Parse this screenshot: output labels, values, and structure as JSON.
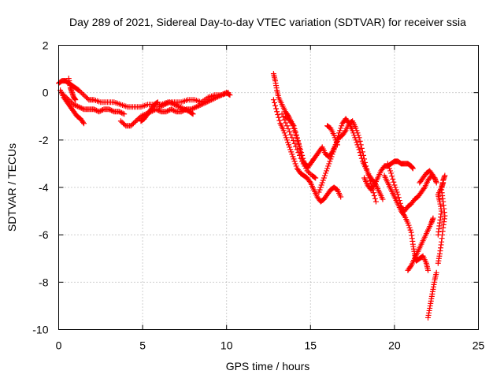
{
  "chart_data": {
    "type": "scatter",
    "title": "Day 289 of 2021, Sidereal Day-to-day VTEC variation (SDTVAR) for receiver ssia",
    "xlabel": "GPS time / hours",
    "ylabel": "SDTVAR / TECUs",
    "xlim": [
      0,
      25
    ],
    "ylim": [
      -10,
      2
    ],
    "xticks": [
      0,
      5,
      10,
      15,
      20,
      25
    ],
    "yticks": [
      -10,
      -8,
      -6,
      -4,
      -2,
      0,
      2
    ],
    "xtick_labels": [
      "0",
      "5",
      "10",
      "15",
      "20",
      "25"
    ],
    "ytick_labels": [
      "-10",
      "-8",
      "-6",
      "-4",
      "-2",
      "0",
      "2"
    ],
    "grid": true,
    "legend": "none",
    "marker": "plus",
    "series": [
      {
        "name": "SDTVAR",
        "color": "#ff0000",
        "tracks": [
          [
            [
              0.0,
              0.4
            ],
            [
              0.2,
              0.5
            ],
            [
              0.4,
              0.5
            ],
            [
              0.6,
              0.4
            ],
            [
              0.8,
              0.3
            ],
            [
              1.0,
              0.2
            ],
            [
              1.2,
              0.1
            ],
            [
              1.5,
              -0.1
            ],
            [
              1.8,
              -0.3
            ],
            [
              2.1,
              -0.3
            ],
            [
              2.5,
              -0.4
            ],
            [
              2.9,
              -0.4
            ],
            [
              3.3,
              -0.4
            ],
            [
              3.7,
              -0.5
            ],
            [
              4.1,
              -0.6
            ],
            [
              4.5,
              -0.6
            ],
            [
              4.9,
              -0.6
            ],
            [
              5.3,
              -0.5
            ],
            [
              5.7,
              -0.5
            ],
            [
              6.1,
              -0.5
            ],
            [
              6.5,
              -0.4
            ],
            [
              6.9,
              -0.4
            ],
            [
              7.3,
              -0.4
            ],
            [
              7.7,
              -0.3
            ],
            [
              8.1,
              -0.3
            ],
            [
              8.5,
              -0.4
            ],
            [
              8.9,
              -0.2
            ],
            [
              9.3,
              -0.1
            ],
            [
              9.7,
              -0.1
            ],
            [
              10.1,
              0.0
            ]
          ],
          [
            [
              0.1,
              0.1
            ],
            [
              0.3,
              -0.2
            ],
            [
              0.5,
              -0.4
            ],
            [
              0.7,
              -0.6
            ],
            [
              0.9,
              -0.8
            ],
            [
              1.1,
              -1.0
            ],
            [
              1.3,
              -1.1
            ],
            [
              1.5,
              -1.3
            ]
          ],
          [
            [
              0.3,
              -0.1
            ],
            [
              0.6,
              -0.3
            ],
            [
              0.9,
              -0.5
            ],
            [
              1.2,
              -0.6
            ],
            [
              1.5,
              -0.7
            ],
            [
              1.8,
              -0.7
            ],
            [
              2.1,
              -0.7
            ],
            [
              2.4,
              -0.8
            ],
            [
              2.7,
              -0.7
            ],
            [
              3.0,
              -0.7
            ],
            [
              3.3,
              -0.8
            ],
            [
              3.6,
              -0.8
            ],
            [
              3.9,
              -0.9
            ]
          ],
          [
            [
              3.7,
              -1.2
            ],
            [
              4.0,
              -1.4
            ],
            [
              4.3,
              -1.4
            ],
            [
              4.6,
              -1.2
            ],
            [
              4.9,
              -1.0
            ],
            [
              5.2,
              -0.9
            ],
            [
              5.5,
              -0.8
            ],
            [
              5.8,
              -0.7
            ],
            [
              6.1,
              -0.8
            ],
            [
              6.4,
              -0.8
            ],
            [
              6.7,
              -0.7
            ],
            [
              7.0,
              -0.8
            ],
            [
              7.3,
              -0.8
            ],
            [
              7.6,
              -0.7
            ],
            [
              7.9,
              -0.7
            ],
            [
              8.2,
              -0.6
            ],
            [
              8.5,
              -0.5
            ],
            [
              8.8,
              -0.4
            ],
            [
              9.1,
              -0.3
            ],
            [
              9.4,
              -0.2
            ],
            [
              9.7,
              -0.1
            ],
            [
              10.0,
              0.0
            ],
            [
              10.2,
              -0.1
            ]
          ],
          [
            [
              4.9,
              -1.2
            ],
            [
              5.1,
              -1.1
            ],
            [
              5.3,
              -0.9
            ],
            [
              5.5,
              -0.7
            ],
            [
              5.7,
              -0.5
            ],
            [
              5.9,
              -0.4
            ]
          ],
          [
            [
              6.0,
              -0.6
            ],
            [
              6.3,
              -0.5
            ],
            [
              6.6,
              -0.4
            ],
            [
              6.9,
              -0.5
            ],
            [
              7.2,
              -0.6
            ],
            [
              7.5,
              -0.7
            ],
            [
              7.8,
              -0.8
            ],
            [
              8.0,
              -0.9
            ]
          ],
          [
            [
              0.6,
              0.6
            ],
            [
              0.7,
              0.2
            ],
            [
              0.8,
              0.0
            ],
            [
              0.9,
              -0.2
            ],
            [
              1.0,
              -0.3
            ]
          ],
          [
            [
              12.8,
              0.8
            ],
            [
              12.9,
              0.5
            ],
            [
              13.0,
              0.1
            ],
            [
              13.1,
              -0.2
            ],
            [
              13.3,
              -0.5
            ],
            [
              13.5,
              -0.8
            ],
            [
              13.7,
              -1.0
            ],
            [
              13.9,
              -1.3
            ],
            [
              14.1,
              -1.7
            ],
            [
              14.3,
              -2.2
            ],
            [
              14.5,
              -2.8
            ],
            [
              14.7,
              -3.1
            ],
            [
              14.9,
              -3.1
            ],
            [
              15.1,
              -2.9
            ],
            [
              15.3,
              -2.7
            ],
            [
              15.5,
              -2.5
            ],
            [
              15.7,
              -2.3
            ],
            [
              15.9,
              -2.6
            ],
            [
              16.1,
              -2.7
            ],
            [
              16.3,
              -2.5
            ],
            [
              16.5,
              -2.2
            ],
            [
              16.7,
              -1.7
            ],
            [
              16.9,
              -1.3
            ],
            [
              17.1,
              -1.1
            ],
            [
              17.3,
              -1.3
            ],
            [
              17.5,
              -1.6
            ],
            [
              17.7,
              -2.0
            ],
            [
              17.9,
              -2.4
            ],
            [
              18.1,
              -2.9
            ],
            [
              18.3,
              -3.2
            ],
            [
              18.5,
              -3.5
            ],
            [
              18.7,
              -3.7
            ],
            [
              18.9,
              -3.9
            ],
            [
              19.1,
              -4.2
            ],
            [
              19.3,
              -4.5
            ]
          ],
          [
            [
              12.8,
              -0.3
            ],
            [
              13.0,
              -0.8
            ],
            [
              13.2,
              -1.3
            ],
            [
              13.4,
              -1.6
            ],
            [
              13.6,
              -2.0
            ],
            [
              13.8,
              -2.4
            ],
            [
              14.0,
              -2.8
            ],
            [
              14.2,
              -3.2
            ],
            [
              14.4,
              -3.4
            ],
            [
              14.6,
              -3.5
            ],
            [
              14.8,
              -3.6
            ],
            [
              15.0,
              -3.8
            ],
            [
              15.2,
              -4.1
            ],
            [
              15.4,
              -4.4
            ],
            [
              15.6,
              -4.6
            ],
            [
              15.8,
              -4.5
            ],
            [
              16.0,
              -4.3
            ],
            [
              16.2,
              -4.1
            ],
            [
              16.4,
              -4.0
            ],
            [
              16.6,
              -4.1
            ],
            [
              16.8,
              -4.4
            ]
          ],
          [
            [
              13.5,
              -1.0
            ],
            [
              13.8,
              -1.2
            ],
            [
              14.0,
              -1.4
            ],
            [
              14.2,
              -1.9
            ],
            [
              14.4,
              -2.4
            ],
            [
              14.6,
              -2.9
            ],
            [
              14.8,
              -3.2
            ],
            [
              15.0,
              -3.0
            ],
            [
              15.2,
              -2.8
            ]
          ],
          [
            [
              13.3,
              -0.9
            ],
            [
              13.6,
              -1.4
            ],
            [
              13.9,
              -1.9
            ],
            [
              14.2,
              -2.4
            ],
            [
              14.5,
              -2.9
            ],
            [
              14.8,
              -3.3
            ],
            [
              15.1,
              -3.5
            ],
            [
              15.3,
              -3.6
            ]
          ],
          [
            [
              15.5,
              -4.2
            ],
            [
              15.7,
              -3.8
            ],
            [
              15.9,
              -3.4
            ],
            [
              16.1,
              -3.0
            ],
            [
              16.3,
              -2.6
            ],
            [
              16.5,
              -2.2
            ],
            [
              16.7,
              -1.9
            ],
            [
              16.9,
              -1.8
            ],
            [
              17.1,
              -1.6
            ],
            [
              17.3,
              -1.3
            ],
            [
              17.5,
              -1.2
            ],
            [
              17.7,
              -1.5
            ],
            [
              17.9,
              -1.9
            ],
            [
              18.1,
              -2.5
            ],
            [
              18.3,
              -3.1
            ],
            [
              18.5,
              -3.6
            ],
            [
              18.7,
              -4.1
            ],
            [
              18.9,
              -4.6
            ]
          ],
          [
            [
              16.0,
              -1.4
            ],
            [
              16.2,
              -1.5
            ],
            [
              16.4,
              -1.8
            ],
            [
              16.6,
              -2.2
            ]
          ],
          [
            [
              18.2,
              -3.6
            ],
            [
              18.4,
              -3.9
            ],
            [
              18.6,
              -4.1
            ],
            [
              18.8,
              -3.9
            ],
            [
              19.0,
              -3.6
            ],
            [
              19.2,
              -3.3
            ],
            [
              19.4,
              -3.1
            ],
            [
              19.6,
              -3.1
            ],
            [
              19.8,
              -3.0
            ],
            [
              20.0,
              -2.9
            ],
            [
              20.2,
              -2.9
            ],
            [
              20.4,
              -3.0
            ],
            [
              20.6,
              -3.0
            ],
            [
              20.8,
              -3.0
            ],
            [
              21.0,
              -3.1
            ],
            [
              21.1,
              -3.2
            ]
          ],
          [
            [
              19.4,
              -3.5
            ],
            [
              19.6,
              -3.8
            ],
            [
              19.8,
              -4.1
            ],
            [
              20.0,
              -4.4
            ],
            [
              20.2,
              -4.7
            ],
            [
              20.4,
              -5.0
            ],
            [
              20.6,
              -5.2
            ],
            [
              20.8,
              -5.5
            ],
            [
              21.0,
              -5.9
            ],
            [
              21.1,
              -6.4
            ],
            [
              21.2,
              -6.8
            ],
            [
              21.3,
              -7.1
            ],
            [
              21.5,
              -7.0
            ],
            [
              21.7,
              -6.9
            ],
            [
              21.9,
              -7.2
            ],
            [
              22.0,
              -7.5
            ]
          ],
          [
            [
              19.6,
              -3.0
            ],
            [
              19.8,
              -3.4
            ],
            [
              20.0,
              -3.9
            ],
            [
              20.2,
              -4.3
            ],
            [
              20.4,
              -4.8
            ],
            [
              20.6,
              -5.0
            ],
            [
              20.8,
              -4.8
            ],
            [
              21.0,
              -4.7
            ],
            [
              21.2,
              -4.5
            ],
            [
              21.4,
              -4.4
            ],
            [
              21.6,
              -4.2
            ],
            [
              21.8,
              -4.0
            ],
            [
              22.0,
              -3.7
            ],
            [
              22.2,
              -3.5
            ],
            [
              22.4,
              -3.6
            ],
            [
              22.5,
              -3.8
            ]
          ],
          [
            [
              20.8,
              -7.5
            ],
            [
              21.0,
              -7.3
            ],
            [
              21.2,
              -7.0
            ],
            [
              21.4,
              -6.7
            ],
            [
              21.6,
              -6.4
            ],
            [
              21.8,
              -6.1
            ],
            [
              22.0,
              -5.8
            ],
            [
              22.2,
              -5.5
            ],
            [
              22.3,
              -5.3
            ]
          ],
          [
            [
              22.0,
              -9.5
            ],
            [
              22.1,
              -9.1
            ],
            [
              22.2,
              -8.7
            ],
            [
              22.3,
              -8.3
            ],
            [
              22.4,
              -7.9
            ],
            [
              22.5,
              -7.6
            ]
          ],
          [
            [
              22.6,
              -7.2
            ],
            [
              22.7,
              -6.8
            ],
            [
              22.8,
              -6.3
            ],
            [
              22.9,
              -5.7
            ],
            [
              23.0,
              -5.2
            ],
            [
              22.9,
              -4.6
            ],
            [
              22.8,
              -4.1
            ],
            [
              22.9,
              -3.7
            ],
            [
              23.0,
              -3.5
            ]
          ],
          [
            [
              22.6,
              -6.0
            ],
            [
              22.7,
              -5.5
            ],
            [
              22.8,
              -5.0
            ],
            [
              22.7,
              -4.6
            ],
            [
              22.6,
              -4.3
            ],
            [
              22.8,
              -4.0
            ],
            [
              22.9,
              -3.8
            ]
          ],
          [
            [
              21.5,
              -3.8
            ],
            [
              21.7,
              -3.6
            ],
            [
              21.9,
              -3.4
            ],
            [
              22.1,
              -3.3
            ],
            [
              22.3,
              -3.5
            ]
          ]
        ]
      }
    ]
  }
}
